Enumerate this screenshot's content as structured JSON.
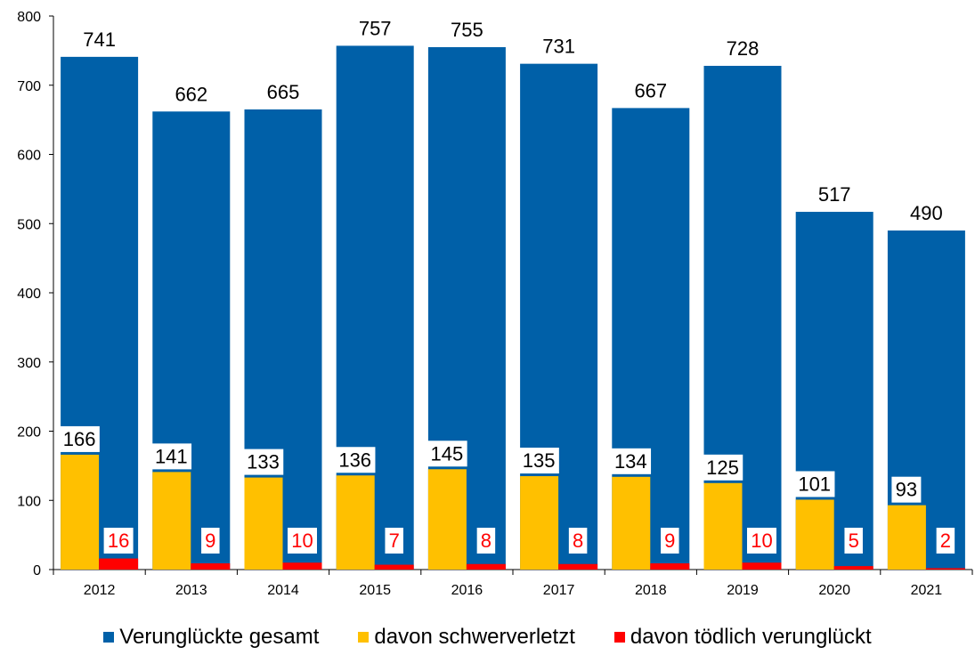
{
  "chart_data": {
    "type": "bar",
    "categories": [
      "2012",
      "2013",
      "2014",
      "2015",
      "2016",
      "2017",
      "2018",
      "2019",
      "2020",
      "2021"
    ],
    "series": [
      {
        "name": "Verunglückte gesamt",
        "values": [
          741,
          662,
          665,
          757,
          755,
          731,
          667,
          728,
          517,
          490
        ],
        "color": "#0060a8"
      },
      {
        "name": "davon schwerverletzt",
        "values": [
          166,
          141,
          133,
          136,
          145,
          135,
          134,
          125,
          101,
          93
        ],
        "color": "#ffc000"
      },
      {
        "name": "davon tödlich verunglückt",
        "values": [
          16,
          9,
          10,
          7,
          8,
          8,
          9,
          10,
          5,
          2
        ],
        "color": "#ff0000"
      }
    ],
    "ylim": [
      0,
      800
    ],
    "yticks": [
      0,
      100,
      200,
      300,
      400,
      500,
      600,
      700,
      800
    ],
    "grid": false,
    "legend_position": "bottom",
    "title": "",
    "xlabel": "",
    "ylabel": ""
  }
}
